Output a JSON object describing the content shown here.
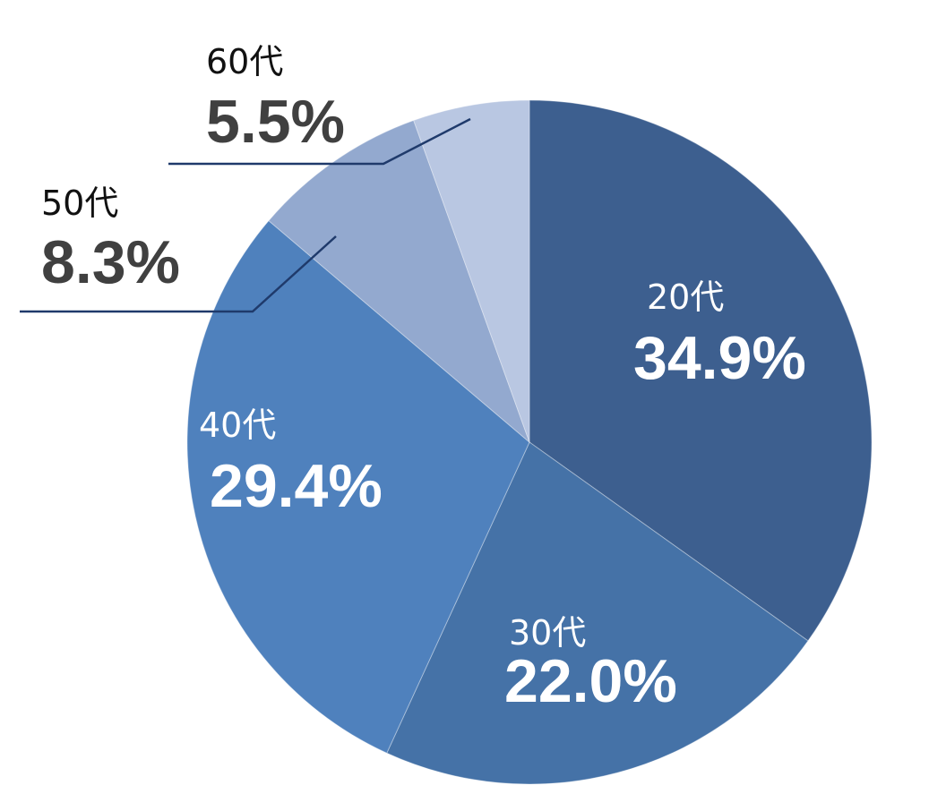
{
  "chart_data": {
    "type": "pie",
    "title": "",
    "slices": [
      {
        "category": "20代",
        "value": 34.9,
        "value_label": "34.9%",
        "color": "#3d5f8f"
      },
      {
        "category": "30代",
        "value": 22.0,
        "value_label": "22.0%",
        "color": "#4572a7"
      },
      {
        "category": "40代",
        "value": 29.4,
        "value_label": "29.4%",
        "color": "#4f81bd"
      },
      {
        "category": "50代",
        "value": 8.3,
        "value_label": "8.3%",
        "color": "#93a9cf"
      },
      {
        "category": "60代",
        "value": 5.5,
        "value_label": "5.5%",
        "color": "#b9c7e2"
      }
    ],
    "start_angle": "12 o'clock",
    "direction": "clockwise",
    "inside_label_color": "#ffffff",
    "outside_label_color": "#404040",
    "leader_line_color": "#1f3a6b",
    "legend": "none"
  }
}
